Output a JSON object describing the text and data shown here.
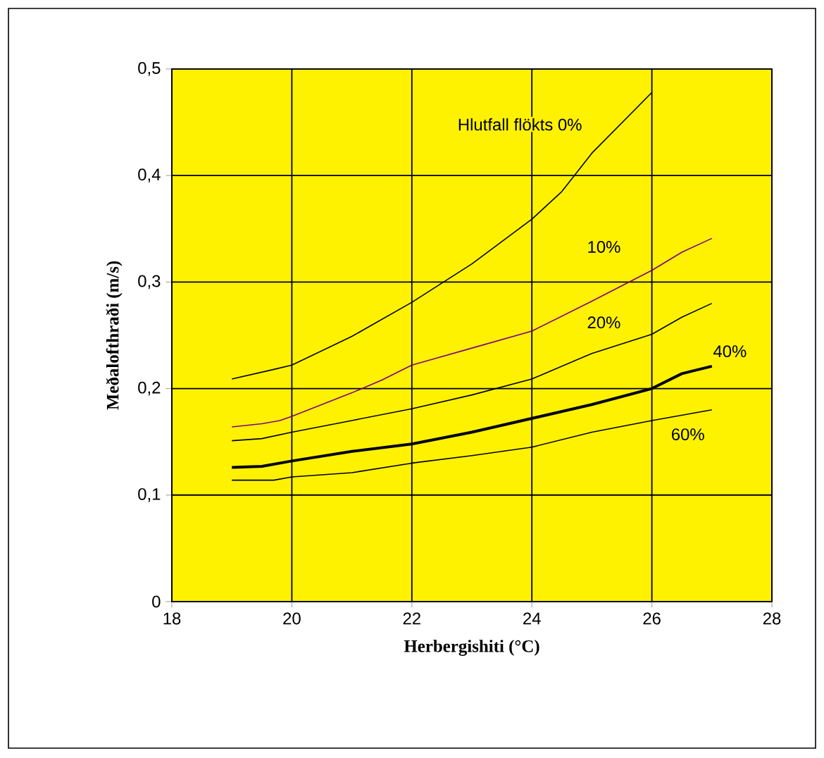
{
  "chart_data": {
    "type": "line",
    "xlabel": "Herbergishiti (°C)",
    "ylabel": "Meðalofthraði  (m/s)",
    "xlim": [
      18,
      28
    ],
    "xticks": [
      18,
      20,
      22,
      24,
      26,
      28
    ],
    "ylim": [
      0,
      0.5
    ],
    "yticks": [
      {
        "value": 0,
        "label": "0"
      },
      {
        "value": 0.1,
        "label": "0,1"
      },
      {
        "value": 0.2,
        "label": "0,2"
      },
      {
        "value": 0.3,
        "label": "0,3"
      },
      {
        "value": 0.4,
        "label": "0,4"
      },
      {
        "value": 0.5,
        "label": "0,5"
      }
    ],
    "grid": true,
    "marker": "none",
    "line_style": "solid",
    "series": [
      {
        "name": "Hlutfall flökts 0%",
        "color": "#000000",
        "x": [
          19,
          19.7,
          20,
          21,
          22,
          23,
          24,
          24.5,
          25,
          26
        ],
        "values": [
          0.209,
          0.218,
          0.222,
          0.249,
          0.281,
          0.317,
          0.359,
          0.385,
          0.421,
          0.478
        ]
      },
      {
        "name": "10%",
        "color": "#800080",
        "x": [
          19,
          19.5,
          19.8,
          20,
          21,
          21.5,
          22,
          23,
          24,
          25,
          26,
          26.5,
          27
        ],
        "values": [
          0.164,
          0.167,
          0.17,
          0.174,
          0.196,
          0.208,
          0.222,
          0.238,
          0.254,
          0.282,
          0.311,
          0.328,
          0.341
        ]
      },
      {
        "name": "20%",
        "color": "#000000",
        "x": [
          19,
          19.5,
          20,
          21,
          22,
          23,
          24,
          25,
          26,
          26.5,
          27
        ],
        "values": [
          0.151,
          0.153,
          0.159,
          0.17,
          0.181,
          0.194,
          0.209,
          0.233,
          0.251,
          0.267,
          0.28
        ]
      },
      {
        "name": "40%",
        "color": "#000000",
        "x": [
          19,
          19.5,
          20,
          21,
          22,
          23,
          24,
          25,
          26,
          26.5,
          27
        ],
        "values": [
          0.126,
          0.127,
          0.132,
          0.141,
          0.148,
          0.159,
          0.172,
          0.185,
          0.2,
          0.214,
          0.221
        ]
      },
      {
        "name": "60%",
        "color": "#000000",
        "x": [
          19,
          19.7,
          20,
          21,
          22,
          23,
          24,
          25,
          26,
          27
        ],
        "values": [
          0.114,
          0.114,
          0.117,
          0.121,
          0.13,
          0.137,
          0.145,
          0.159,
          0.17,
          0.18
        ]
      }
    ]
  }
}
